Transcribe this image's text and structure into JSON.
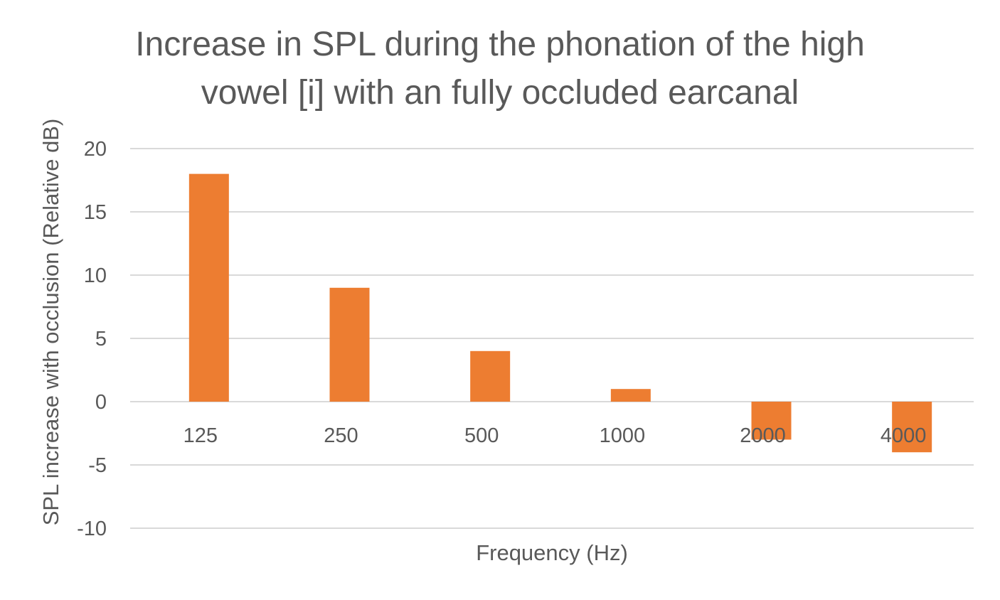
{
  "chart_data": {
    "type": "bar",
    "title_lines": [
      "Increase in SPL during the phonation of the high",
      "vowel [i] with an fully occluded earcanal"
    ],
    "xlabel": "Frequency (Hz)",
    "ylabel": "SPL increase with occlusion (Relative dB)",
    "categories": [
      "125",
      "250",
      "500",
      "1000",
      "2000",
      "4000"
    ],
    "values": [
      18,
      9,
      4,
      1,
      -3,
      -4
    ],
    "ylim": [
      -10,
      20
    ],
    "yticks": [
      20,
      15,
      10,
      5,
      0,
      -5,
      -10
    ],
    "ytick_labels": [
      "20",
      "15",
      "10",
      "5",
      "0",
      "-5",
      "-10"
    ],
    "grid": true,
    "legend": "none",
    "bar_color": "#ed7d31"
  }
}
